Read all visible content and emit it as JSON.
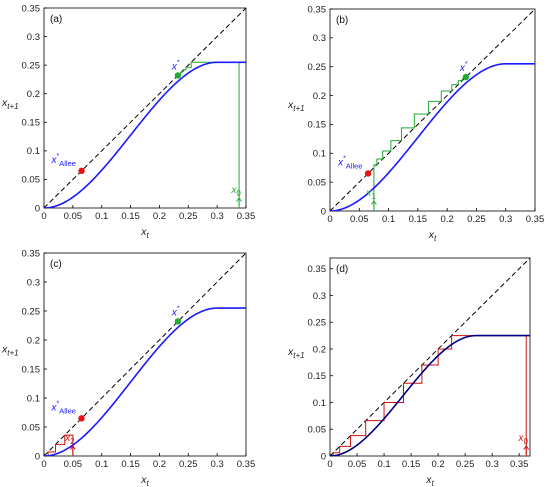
{
  "colors": {
    "curve": "#1a1aff",
    "diagonal": "#000000",
    "allee_point": "#ee1111",
    "fixed_point": "#22aa33",
    "cobweb_green": "#22aa33",
    "cobweb_red": "#cc1111",
    "axis": "#000000"
  },
  "chart_data": [
    {
      "panel": "(a)",
      "type": "line",
      "xlabel_base": "x",
      "xlabel_sub": "t",
      "ylabel_base": "x",
      "ylabel_sub": "t+1",
      "xlim": [
        0,
        0.35
      ],
      "ylim": [
        0,
        0.35
      ],
      "xticks": [
        "0",
        "0.05",
        "0.1",
        "0.15",
        "0.2",
        "0.25",
        "0.3",
        "0.35"
      ],
      "yticks": [
        "0",
        "0.05",
        "0.1",
        "0.15",
        "0.2",
        "0.25",
        "0.3",
        "0.35"
      ],
      "map_max": 0.255,
      "map_sat": 0.3,
      "allee_point": [
        0.065,
        0.065
      ],
      "fixed_point": [
        0.232,
        0.232
      ],
      "allee_label_base": "x",
      "allee_label_sup": "*",
      "allee_label_sub": "Allee",
      "fixed_label_base": "x",
      "fixed_label_sup": "*",
      "cobweb": {
        "x0": 0.338,
        "color": "green",
        "points": [
          [
            0.338,
            0
          ],
          [
            0.338,
            0.255
          ],
          [
            0.255,
            0.255
          ],
          [
            0.255,
            0.246
          ],
          [
            0.246,
            0.246
          ],
          [
            0.246,
            0.242
          ],
          [
            0.242,
            0.242
          ],
          [
            0.242,
            0.239
          ],
          [
            0.239,
            0.239
          ],
          [
            0.239,
            0.237
          ],
          [
            0.237,
            0.237
          ],
          [
            0.237,
            0.235
          ],
          [
            0.235,
            0.235
          ],
          [
            0.235,
            0.234
          ]
        ]
      },
      "start_label_base": "x",
      "start_label_sub": "0",
      "start_label_x": 0.338
    },
    {
      "panel": "(b)",
      "type": "line",
      "xlabel_base": "x",
      "xlabel_sub": "t",
      "ylabel_base": "x",
      "ylabel_sub": "t+1",
      "xlim": [
        0,
        0.35
      ],
      "ylim": [
        0,
        0.35
      ],
      "xticks": [
        "0",
        "0.05",
        "0.1",
        "0.15",
        "0.2",
        "0.25",
        "0.3",
        "0.35"
      ],
      "yticks": [
        "0",
        "0.05",
        "0.1",
        "0.15",
        "0.2",
        "0.25",
        "0.3",
        "0.35"
      ],
      "map_max": 0.255,
      "map_sat": 0.3,
      "allee_point": [
        0.065,
        0.065
      ],
      "fixed_point": [
        0.232,
        0.232
      ],
      "allee_label_base": "x",
      "allee_label_sup": "*",
      "allee_label_sub": "Allee",
      "fixed_label_base": "x",
      "fixed_label_sup": "*",
      "cobweb": {
        "x0": 0.075,
        "color": "green",
        "points": [
          [
            0.075,
            0
          ],
          [
            0.075,
            0.08
          ],
          [
            0.08,
            0.08
          ],
          [
            0.08,
            0.09
          ],
          [
            0.09,
            0.09
          ],
          [
            0.09,
            0.104
          ],
          [
            0.104,
            0.104
          ],
          [
            0.104,
            0.122
          ],
          [
            0.122,
            0.122
          ],
          [
            0.122,
            0.144
          ],
          [
            0.144,
            0.144
          ],
          [
            0.144,
            0.168
          ],
          [
            0.168,
            0.168
          ],
          [
            0.168,
            0.19
          ],
          [
            0.19,
            0.19
          ],
          [
            0.19,
            0.208
          ],
          [
            0.208,
            0.208
          ],
          [
            0.208,
            0.219
          ],
          [
            0.219,
            0.219
          ],
          [
            0.219,
            0.226
          ],
          [
            0.226,
            0.226
          ],
          [
            0.226,
            0.23
          ]
        ]
      },
      "start_label_base": "x",
      "start_label_sub": "1",
      "start_label_x": 0.075
    },
    {
      "panel": "(c)",
      "type": "line",
      "xlabel_base": "x",
      "xlabel_sub": "t",
      "ylabel_base": "x",
      "ylabel_sub": "t+1",
      "xlim": [
        0,
        0.35
      ],
      "ylim": [
        0,
        0.35
      ],
      "xticks": [
        "0",
        "0.05",
        "0.1",
        "0.15",
        "0.2",
        "0.25",
        "0.3",
        "0.35"
      ],
      "yticks": [
        "0",
        "0.05",
        "0.1",
        "0.15",
        "0.2",
        "0.25",
        "0.3",
        "0.35"
      ],
      "map_max": 0.255,
      "map_sat": 0.3,
      "allee_point": [
        0.065,
        0.065
      ],
      "fixed_point": [
        0.232,
        0.232
      ],
      "allee_label_base": "x",
      "allee_label_sup": "*",
      "allee_label_sub": "Allee",
      "fixed_label_base": "x",
      "fixed_label_sup": "*",
      "cobweb": {
        "x0": 0.05,
        "color": "red",
        "points": [
          [
            0.05,
            0
          ],
          [
            0.05,
            0.036
          ],
          [
            0.036,
            0.036
          ],
          [
            0.036,
            0.02
          ],
          [
            0.02,
            0.02
          ],
          [
            0.02,
            0.007
          ],
          [
            0.007,
            0.007
          ],
          [
            0.007,
            0.001
          ]
        ]
      },
      "start_label_base": "x",
      "start_label_sub": "2",
      "start_label_x": 0.05
    },
    {
      "panel": "(d)",
      "type": "line",
      "xlabel_base": "x",
      "xlabel_sub": "t",
      "ylabel_base": "x",
      "ylabel_sub": "t+1",
      "xlim": [
        0,
        0.37
      ],
      "ylim": [
        0,
        0.37
      ],
      "xticks": [
        "0",
        "0.05",
        "0.1",
        "0.15",
        "0.2",
        "0.25",
        "0.3",
        "0.35"
      ],
      "yticks": [
        "0",
        "0.05",
        "0.1",
        "0.15",
        "0.2",
        "0.25",
        "0.3",
        "0.35"
      ],
      "map_max": 0.225,
      "map_sat": 0.27,
      "allee_point": null,
      "fixed_point": null,
      "cobweb": {
        "x0": 0.363,
        "color": "red",
        "points": [
          [
            0.363,
            0
          ],
          [
            0.363,
            0.225
          ],
          [
            0.225,
            0.225
          ],
          [
            0.225,
            0.2
          ],
          [
            0.2,
            0.2
          ],
          [
            0.2,
            0.17
          ],
          [
            0.17,
            0.17
          ],
          [
            0.17,
            0.136
          ],
          [
            0.136,
            0.136
          ],
          [
            0.136,
            0.1
          ],
          [
            0.1,
            0.1
          ],
          [
            0.1,
            0.066
          ],
          [
            0.066,
            0.066
          ],
          [
            0.066,
            0.038
          ],
          [
            0.038,
            0.038
          ],
          [
            0.038,
            0.018
          ],
          [
            0.018,
            0.018
          ],
          [
            0.018,
            0.006
          ],
          [
            0.006,
            0.006
          ],
          [
            0.006,
            0.001
          ]
        ]
      },
      "start_label_base": "x",
      "start_label_sub": "0",
      "start_label_x": 0.363
    }
  ]
}
